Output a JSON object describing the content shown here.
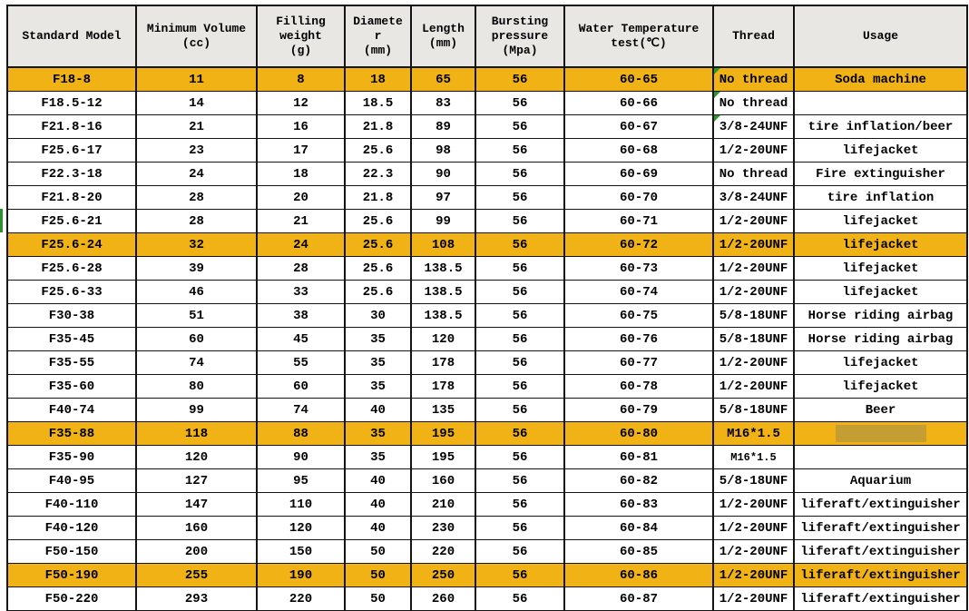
{
  "colors": {
    "highlight_row": "#F0B214",
    "header_bg": "#E9E7E3",
    "grid_line": "#141414",
    "comment_marker_green": "#279A27",
    "left_row_mark_green": "#2E8F2E",
    "redacted_block": "#C49D33",
    "text": "#000000",
    "background": "#FFFFFF"
  },
  "table": {
    "columns": [
      "Standard Model",
      "Minimum Volume\n(cc)",
      "Filling\nweight\n(g)",
      "Diamete\nr\n(mm)",
      "Length\n(mm)",
      "Bursting\npressure\n(Mpa)",
      "Water Temperature\ntest(℃)",
      "Thread",
      "Usage"
    ],
    "rows": [
      {
        "cells": [
          "F18-8",
          "11",
          "8",
          "18",
          "65",
          "56",
          "60-65",
          "No thread",
          "Soda machine"
        ],
        "highlight": true,
        "thread_marker": true
      },
      {
        "cells": [
          "F18.5-12",
          "14",
          "12",
          "18.5",
          "83",
          "56",
          "60-66",
          "No thread",
          ""
        ],
        "thread_marker": true
      },
      {
        "cells": [
          "F21.8-16",
          "21",
          "16",
          "21.8",
          "89",
          "56",
          "60-67",
          "3/8-24UNF",
          "tire inflation/beer"
        ],
        "thread_marker": true
      },
      {
        "cells": [
          "F25.6-17",
          "23",
          "17",
          "25.6",
          "98",
          "56",
          "60-68",
          "1/2-20UNF",
          "lifejacket"
        ]
      },
      {
        "cells": [
          "F22.3-18",
          "24",
          "18",
          "22.3",
          "90",
          "56",
          "60-69",
          "No thread",
          "Fire extinguisher"
        ]
      },
      {
        "cells": [
          "F21.8-20",
          "28",
          "20",
          "21.8",
          "97",
          "56",
          "60-70",
          "3/8-24UNF",
          "tire inflation"
        ]
      },
      {
        "cells": [
          "F25.6-21",
          "28",
          "21",
          "25.6",
          "99",
          "56",
          "60-71",
          "1/2-20UNF",
          "lifejacket"
        ],
        "left_marker": true
      },
      {
        "cells": [
          "F25.6-24",
          "32",
          "24",
          "25.6",
          "108",
          "56",
          "60-72",
          "1/2-20UNF",
          "lifejacket"
        ],
        "highlight": true
      },
      {
        "cells": [
          "F25.6-28",
          "39",
          "28",
          "25.6",
          "138.5",
          "56",
          "60-73",
          "1/2-20UNF",
          "lifejacket"
        ]
      },
      {
        "cells": [
          "F25.6-33",
          "46",
          "33",
          "25.6",
          "138.5",
          "56",
          "60-74",
          "1/2-20UNF",
          "lifejacket"
        ]
      },
      {
        "cells": [
          "F30-38",
          "51",
          "38",
          "30",
          "138.5",
          "56",
          "60-75",
          "5/8-18UNF",
          "Horse riding airbag"
        ]
      },
      {
        "cells": [
          "F35-45",
          "60",
          "45",
          "35",
          "120",
          "56",
          "60-76",
          "5/8-18UNF",
          "Horse riding airbag"
        ]
      },
      {
        "cells": [
          "F35-55",
          "74",
          "55",
          "35",
          "178",
          "56",
          "60-77",
          "1/2-20UNF",
          "lifejacket"
        ]
      },
      {
        "cells": [
          "F35-60",
          "80",
          "60",
          "35",
          "178",
          "56",
          "60-78",
          "1/2-20UNF",
          "lifejacket"
        ]
      },
      {
        "cells": [
          "F40-74",
          "99",
          "74",
          "40",
          "135",
          "56",
          "60-79",
          "5/8-18UNF",
          "Beer"
        ]
      },
      {
        "cells": [
          "F35-88",
          "118",
          "88",
          "35",
          "195",
          "56",
          "60-80",
          "M16*1.5",
          ""
        ],
        "highlight": true,
        "usage_redacted": true
      },
      {
        "cells": [
          "F35-90",
          "120",
          "90",
          "35",
          "195",
          "56",
          "60-81",
          "M16*1.5",
          ""
        ],
        "thread_small": true
      },
      {
        "cells": [
          "F40-95",
          "127",
          "95",
          "40",
          "160",
          "56",
          "60-82",
          "5/8-18UNF",
          "Aquarium"
        ]
      },
      {
        "cells": [
          "F40-110",
          "147",
          "110",
          "40",
          "210",
          "56",
          "60-83",
          "1/2-20UNF",
          "liferaft/extinguisher"
        ]
      },
      {
        "cells": [
          "F40-120",
          "160",
          "120",
          "40",
          "230",
          "56",
          "60-84",
          "1/2-20UNF",
          "liferaft/extinguisher"
        ]
      },
      {
        "cells": [
          "F50-150",
          "200",
          "150",
          "50",
          "220",
          "56",
          "60-85",
          "1/2-20UNF",
          "liferaft/extinguisher"
        ]
      },
      {
        "cells": [
          "F50-190",
          "255",
          "190",
          "50",
          "250",
          "56",
          "60-86",
          "1/2-20UNF",
          "liferaft/extinguisher"
        ],
        "highlight": true
      },
      {
        "cells": [
          "F50-220",
          "293",
          "220",
          "50",
          "260",
          "56",
          "60-87",
          "1/2-20UNF",
          "liferaft/extinguisher"
        ]
      }
    ]
  }
}
